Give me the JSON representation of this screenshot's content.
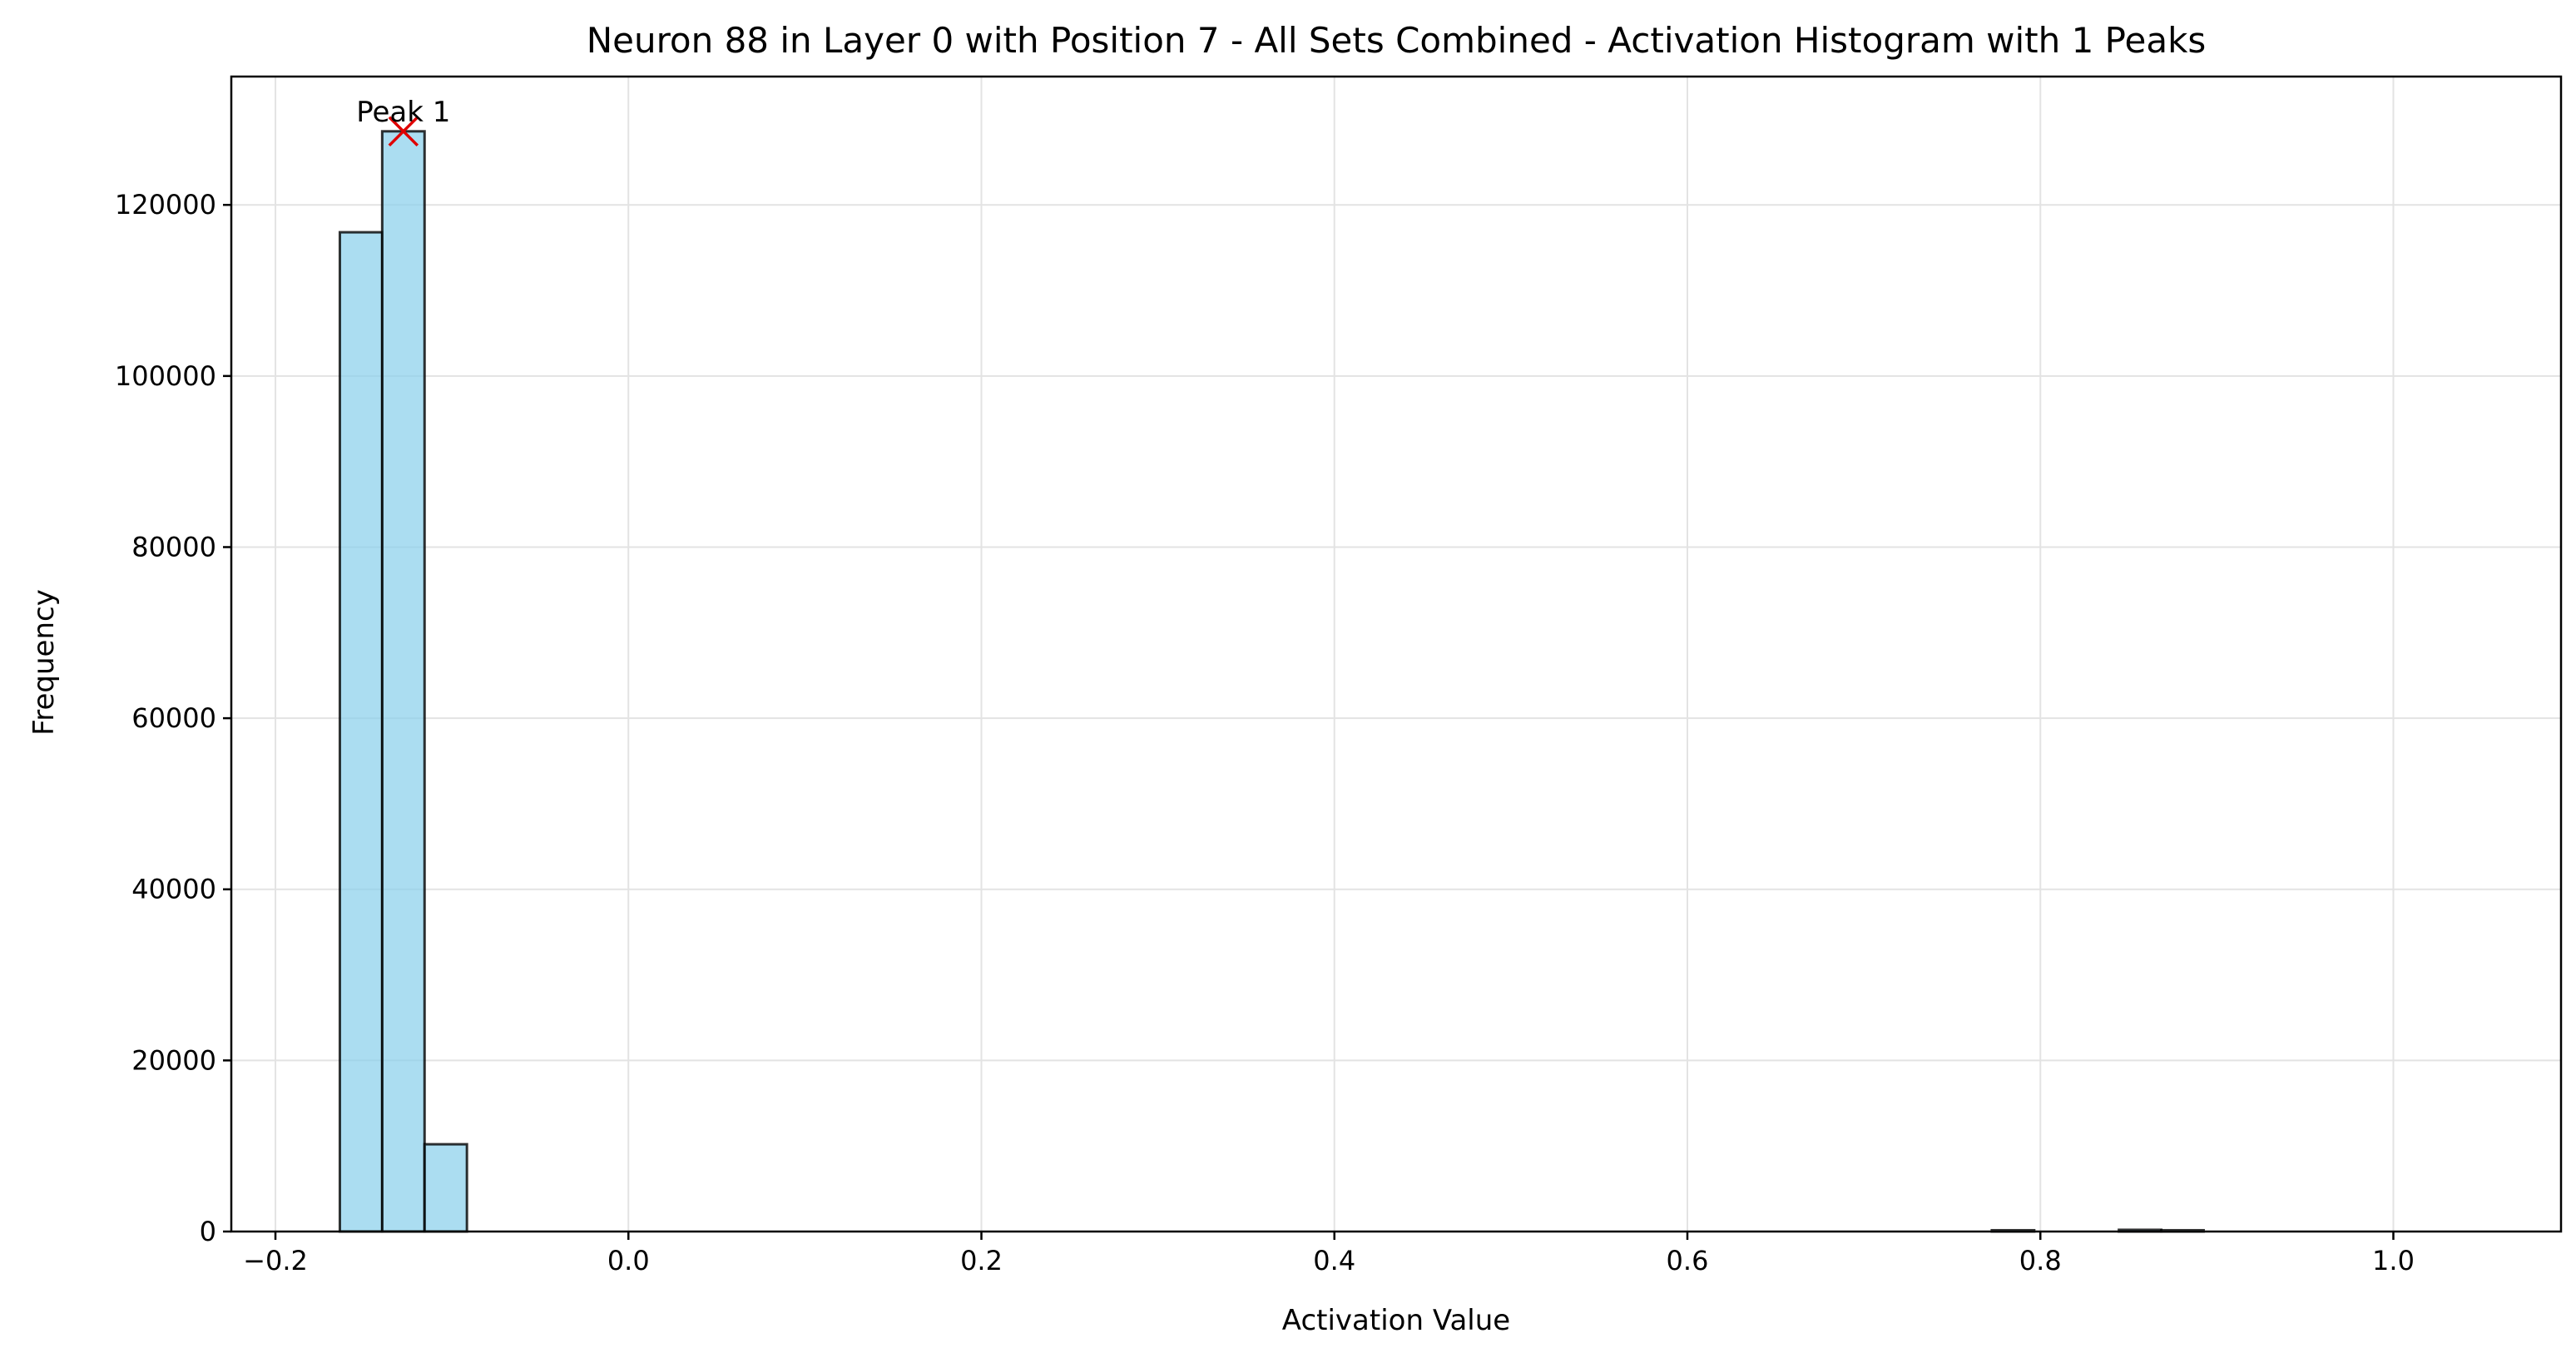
{
  "chart_data": {
    "type": "bar",
    "title": "Neuron 88 in Layer 0 with Position 7 - All Sets Combined - Activation Histogram with 1 Peaks",
    "xlabel": "Activation Value",
    "ylabel": "Frequency",
    "xlim": [
      -0.225,
      1.095
    ],
    "ylim": [
      0,
      135000
    ],
    "xticks": [
      -0.2,
      0.0,
      0.2,
      0.4,
      0.6,
      0.8,
      1.0
    ],
    "xtick_labels": [
      "−0.2",
      "0.0",
      "0.2",
      "0.4",
      "0.6",
      "0.8",
      "1.0"
    ],
    "yticks": [
      0,
      20000,
      40000,
      60000,
      80000,
      100000,
      120000
    ],
    "ytick_labels": [
      "0",
      "20000",
      "40000",
      "60000",
      "80000",
      "100000",
      "120000"
    ],
    "grid": true,
    "bar_color": "#87ceeb",
    "bar_edge_color": "#000000",
    "bins": [
      {
        "x0": -0.1635,
        "x1": -0.1395,
        "count": 116800
      },
      {
        "x0": -0.1395,
        "x1": -0.1155,
        "count": 128600
      },
      {
        "x0": -0.1155,
        "x1": -0.0915,
        "count": 10200
      },
      {
        "x0": 0.7725,
        "x1": 0.7965,
        "count": 150
      },
      {
        "x0": 0.8445,
        "x1": 0.8685,
        "count": 200
      },
      {
        "x0": 0.8685,
        "x1": 0.8925,
        "count": 150
      }
    ],
    "peaks": [
      {
        "label": "Peak 1",
        "x": -0.1275,
        "y": 128600,
        "marker_color": "#e00000"
      }
    ]
  }
}
